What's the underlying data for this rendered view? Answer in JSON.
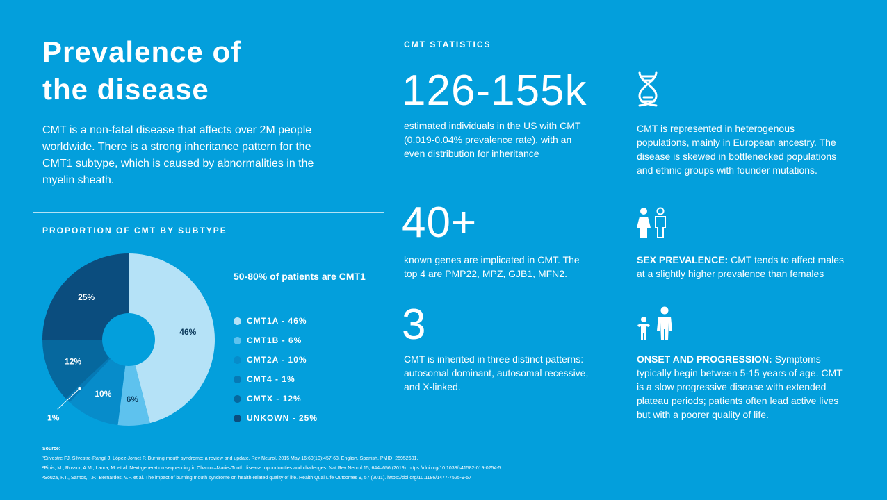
{
  "header": {
    "title_line1": "Prevalence of",
    "title_line2": "the disease",
    "intro": "CMT is a non-fatal disease that affects over 2M people worldwide. There is a strong inheritance pattern for the CMT1 subtype, which is caused by abnormalities in the myelin sheath."
  },
  "stats": {
    "label": "CMT STATISTICS",
    "items": [
      {
        "number": "126-155k",
        "desc": "estimated individuals in the US with CMT (0.019-0.04% prevalence rate), with an even distribution for inheritance"
      },
      {
        "number": "40+",
        "desc": "known genes are implicated in CMT. The top 4 are PMP22, MPZ, GJB1, MFN2."
      },
      {
        "number": "3",
        "desc": "CMT is inherited in three distinct patterns: autosomal dominant, autosomal recessive, and X-linked."
      }
    ]
  },
  "facts": [
    {
      "icon": "dna-icon",
      "lead": "",
      "text": "CMT is represented in heterogenous populations, mainly in European ancestry. The disease is skewed in bottlenecked populations and ethnic groups with founder mutations."
    },
    {
      "icon": "female-male-icon",
      "lead": "SEX PREVALENCE:",
      "text": " CMT tends to affect males at a slightly higher prevalence than females"
    },
    {
      "icon": "child-adult-icon",
      "lead": "ONSET AND PROGRESSION:",
      "text": " Symptoms typically begin between 5-15 years of age. CMT is a slow progressive disease with extended plateau periods; patients often lead active lives but with a poorer quality of life."
    }
  ],
  "chart_data": {
    "type": "pie",
    "title": "PROPORTION OF CMT BY SUBTYPE",
    "headline": "50-80% of patients are CMT1",
    "categories": [
      "CMT1A",
      "CMT1B",
      "CMT2A",
      "CMT4",
      "CMTX",
      "UNKOWN"
    ],
    "values": [
      46,
      6,
      10,
      1,
      12,
      25
    ],
    "value_labels": [
      "46%",
      "6%",
      "10%",
      "1%",
      "12%",
      "25%"
    ],
    "legend_labels": [
      "CMT1A - 46%",
      "CMT1B - 6%",
      "CMT2A - 10%",
      "CMT4 - 1%",
      "CMTX - 12%",
      "UNKOWN - 25%"
    ],
    "colors": [
      "#b5e2f7",
      "#5ec2ee",
      "#078cca",
      "#0679b5",
      "#06689e",
      "#0b4d7e"
    ],
    "donut_hole_color": "#039fdc"
  },
  "sources": {
    "title": "Source:",
    "items": [
      "¹Silvestre FJ, Silvestre-Rangil J, López-Jornet P. Burning mouth syndrome: a review and update. Rev Neurol. 2015 May 16;60(10):457-63. English, Spanish. PMID: 25952601.",
      "²Pipis, M., Rossor, A.M., Laura, M. et al. Next-generation sequencing in Charcot–Marie–Tooth disease: opportunities and challenges. Nat Rev Neurol 15, 644–656 (2019). https://doi.org/10.1038/s41582-019-0254-5",
      "³Souza, F.T., Santos, T.P., Bernardes, V.F. et al. The impact of burning mouth syndrome on health-related quality of life. Health Qual Life Outcomes 9, 57 (2011). https://doi.org/10.1186/1477-7525-9-57"
    ]
  }
}
